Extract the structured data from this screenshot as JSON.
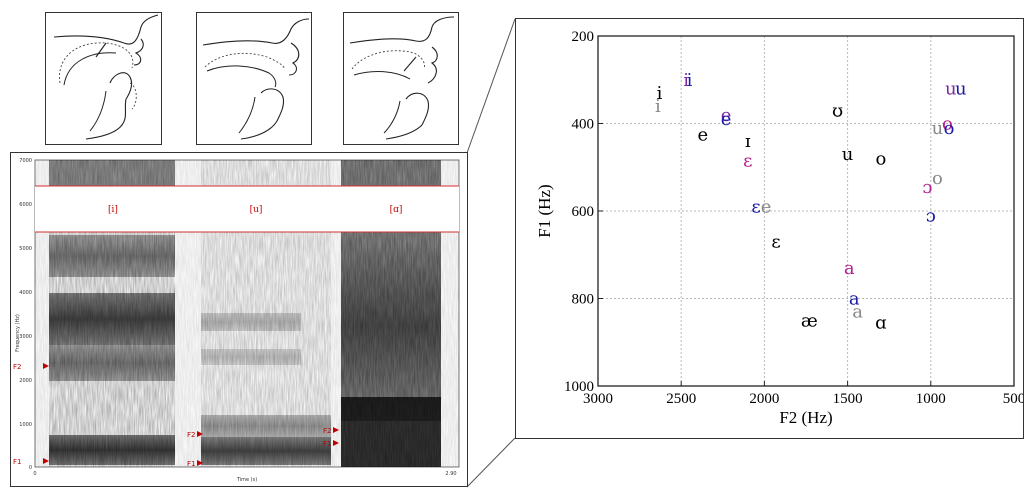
{
  "spectrogram": {
    "labels": [
      "[i]",
      "[u]",
      "[ɑ]"
    ],
    "y_ticks": [
      "7000",
      "6000",
      "5000",
      "4000",
      "3000",
      "2000",
      "1000",
      "0"
    ],
    "y_axis_title": "Frequency (Hz)",
    "x_axis_title": "Time (s)",
    "x_start": "0",
    "x_end": "2.90",
    "formant_markers": [
      "F2",
      "F1",
      "F2",
      "F1",
      "F2",
      "F1"
    ]
  },
  "chart_data": {
    "type": "scatter",
    "xlabel": "F2 (Hz)",
    "ylabel": "F1 (Hz)",
    "xlim": [
      3000,
      500
    ],
    "ylim": [
      200,
      1000
    ],
    "x_reversed": true,
    "y_reversed": true,
    "grid": true,
    "x_ticks": [
      3000,
      2500,
      2000,
      1500,
      1000,
      500
    ],
    "y_ticks": [
      200,
      400,
      600,
      800,
      1000
    ],
    "points": [
      {
        "label": "i",
        "x": 2630,
        "y": 330,
        "color": "#000000"
      },
      {
        "label": "i",
        "x": 2640,
        "y": 360,
        "color": "#888888"
      },
      {
        "label": "i",
        "x": 2470,
        "y": 300,
        "color": "#7b2a9e"
      },
      {
        "label": "i",
        "x": 2450,
        "y": 300,
        "color": "#1a1aa8"
      },
      {
        "label": "e",
        "x": 2370,
        "y": 425,
        "color": "#000000"
      },
      {
        "label": "e",
        "x": 2230,
        "y": 380,
        "color": "#7b2a9e"
      },
      {
        "label": "e",
        "x": 2230,
        "y": 390,
        "color": "#1a1aa8"
      },
      {
        "label": "ɪ",
        "x": 2100,
        "y": 440,
        "color": "#000000"
      },
      {
        "label": "ɛ",
        "x": 2100,
        "y": 485,
        "color": "#b0208f"
      },
      {
        "label": "ʊ",
        "x": 1560,
        "y": 370,
        "color": "#000000"
      },
      {
        "label": "u",
        "x": 1500,
        "y": 470,
        "color": "#000000"
      },
      {
        "label": "o",
        "x": 1300,
        "y": 480,
        "color": "#000000"
      },
      {
        "label": "u",
        "x": 880,
        "y": 320,
        "color": "#7b2a9e"
      },
      {
        "label": "u",
        "x": 820,
        "y": 320,
        "color": "#1a1aa8"
      },
      {
        "label": "o",
        "x": 900,
        "y": 400,
        "color": "#b0208f"
      },
      {
        "label": "u",
        "x": 960,
        "y": 410,
        "color": "#888888"
      },
      {
        "label": "o",
        "x": 890,
        "y": 410,
        "color": "#1a1aa8"
      },
      {
        "label": "ɛ",
        "x": 2050,
        "y": 590,
        "color": "#1a1aa8"
      },
      {
        "label": "e",
        "x": 1990,
        "y": 590,
        "color": "#888888"
      },
      {
        "label": "ɛ",
        "x": 1930,
        "y": 670,
        "color": "#000000"
      },
      {
        "label": "ɔ",
        "x": 1020,
        "y": 545,
        "color": "#b0208f"
      },
      {
        "label": "o",
        "x": 960,
        "y": 525,
        "color": "#888888"
      },
      {
        "label": "ɔ",
        "x": 1000,
        "y": 610,
        "color": "#1a1aa8"
      },
      {
        "label": "a",
        "x": 1490,
        "y": 730,
        "color": "#b0208f"
      },
      {
        "label": "a",
        "x": 1460,
        "y": 800,
        "color": "#1a1aa8"
      },
      {
        "label": "a",
        "x": 1440,
        "y": 830,
        "color": "#888888"
      },
      {
        "label": "æ",
        "x": 1730,
        "y": 850,
        "color": "#000000"
      },
      {
        "label": "ɑ",
        "x": 1300,
        "y": 855,
        "color": "#000000"
      }
    ]
  },
  "colors": {
    "accent_red": "#c00000",
    "grid": "#b8b8b8"
  }
}
